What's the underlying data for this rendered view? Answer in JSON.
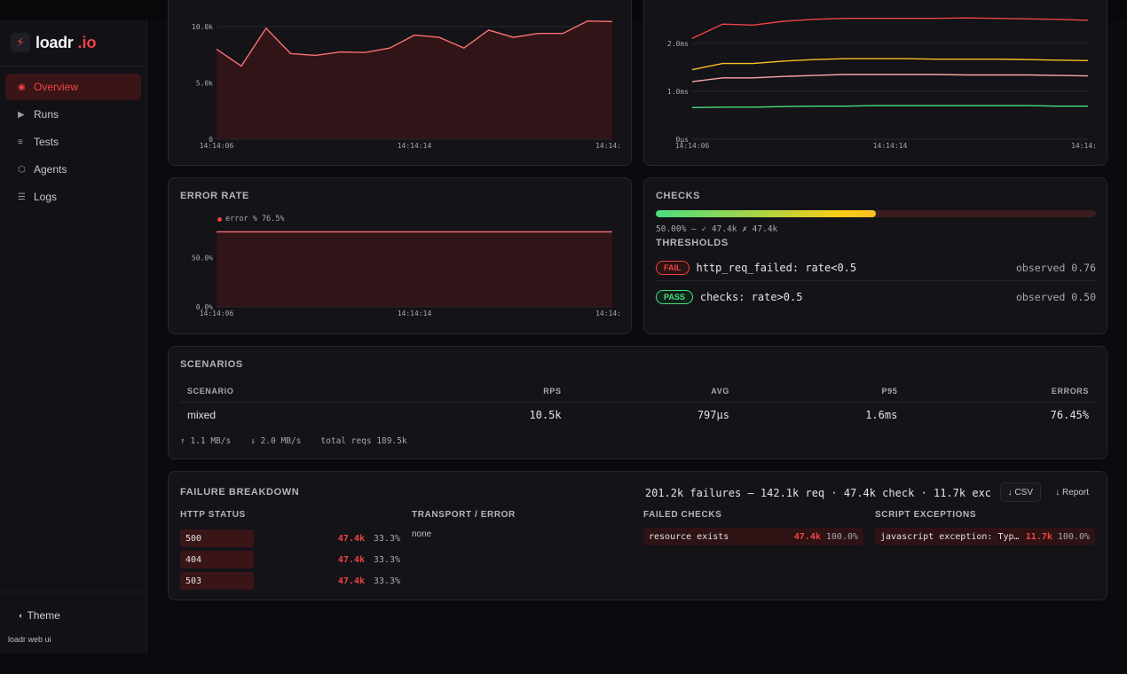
{
  "app": {
    "name": "loadr",
    "tld": ".io",
    "footer_note": "loadr web ui",
    "theme_label": "Theme"
  },
  "nav": [
    {
      "label": "Overview",
      "icon": "target-icon",
      "glyph": "◉",
      "active": true
    },
    {
      "label": "Runs",
      "icon": "play-icon",
      "glyph": "▶",
      "active": false
    },
    {
      "label": "Tests",
      "icon": "list-icon",
      "glyph": "≡",
      "active": false
    },
    {
      "label": "Agents",
      "icon": "hexagon-icon",
      "glyph": "⬡",
      "active": false
    },
    {
      "label": "Logs",
      "icon": "lines-icon",
      "glyph": "☰",
      "active": false
    }
  ],
  "colors": {
    "accent": "#ef4444",
    "pass": "#4ade80",
    "warn": "#facc15",
    "p99": "#ef4444",
    "p95": "#fbbf24",
    "avg": "#fca5a5",
    "min": "#4ade80"
  },
  "chart_data": [
    {
      "type": "area",
      "x_ticks": [
        "14:14:06",
        "14:14:14",
        "14:14:"
      ],
      "y_ticks": [
        "0",
        "5.0k",
        "10.0k"
      ],
      "ylim": [
        0,
        11500
      ],
      "values": [
        8000,
        6500,
        9850,
        7600,
        7450,
        7750,
        7700,
        8100,
        9250,
        9050,
        8100,
        9700,
        9050,
        9400,
        9400,
        10500,
        10450
      ]
    },
    {
      "type": "line",
      "x_ticks": [
        "14:14:06",
        "14:14:14",
        "14:14:"
      ],
      "y_ticks": [
        "0µs",
        "1.0ms",
        "2.0ms"
      ],
      "ylim": [
        0,
        2.7
      ],
      "series": [
        {
          "color": "#ef4444",
          "values": [
            2.1,
            2.4,
            2.38,
            2.46,
            2.5,
            2.52,
            2.52,
            2.52,
            2.52,
            2.53,
            2.52,
            2.51,
            2.5,
            2.48
          ]
        },
        {
          "color": "#fbbf24",
          "values": [
            1.45,
            1.58,
            1.58,
            1.63,
            1.66,
            1.68,
            1.68,
            1.68,
            1.67,
            1.67,
            1.67,
            1.66,
            1.65,
            1.64
          ]
        },
        {
          "color": "#fca5a5",
          "values": [
            1.2,
            1.28,
            1.28,
            1.31,
            1.33,
            1.35,
            1.35,
            1.35,
            1.35,
            1.34,
            1.34,
            1.34,
            1.33,
            1.32
          ]
        },
        {
          "color": "#4ade80",
          "values": [
            0.66,
            0.67,
            0.67,
            0.68,
            0.69,
            0.69,
            0.7,
            0.7,
            0.7,
            0.7,
            0.7,
            0.7,
            0.69,
            0.69
          ]
        }
      ]
    },
    {
      "type": "area",
      "title": "ERROR RATE",
      "legend": "error % 76.5%",
      "x_ticks": [
        "14:14:06",
        "14:14:14",
        "14:14:"
      ],
      "y_ticks": [
        "0.0%",
        "50.0%"
      ],
      "ylim": [
        0,
        95
      ],
      "values": [
        76.5,
        76.5,
        76.5,
        76.5,
        76.5,
        76.5,
        76.5,
        76.5,
        76.5,
        76.5,
        76.5,
        76.5,
        76.5,
        76.5,
        76.5,
        76.5,
        76.5
      ]
    }
  ],
  "checks": {
    "title": "CHECKS",
    "pass_fraction": 0.5,
    "summary": "50.00% — ✓ 47.4k ✗ 47.4k",
    "thresholds_title": "THRESHOLDS",
    "thresholds": [
      {
        "status": "FAIL",
        "name": "http_req_failed: rate<0.5",
        "observed": "observed 0.76"
      },
      {
        "status": "PASS",
        "name": "checks: rate>0.5",
        "observed": "observed 0.50"
      }
    ]
  },
  "scenarios": {
    "title": "SCENARIOS",
    "columns": [
      "SCENARIO",
      "RPS",
      "AVG",
      "P95",
      "ERRORS"
    ],
    "rows": [
      [
        "mixed",
        "10.5k",
        "797µs",
        "1.6ms",
        "76.45%"
      ]
    ],
    "footer": {
      "up": "↑ 1.1 MB/s",
      "down": "↓ 2.0 MB/s",
      "total": "total reqs 189.5k"
    }
  },
  "failures": {
    "title": "FAILURE BREAKDOWN",
    "summary": "201.2k failures — 142.1k req · 47.4k check · 11.7k exc",
    "csv_label": "↓ CSV",
    "report_label": "↓ Report",
    "http_title": "HTTP STATUS",
    "http": [
      {
        "code": "500",
        "count": "47.4k",
        "pct": "33.3%"
      },
      {
        "code": "404",
        "count": "47.4k",
        "pct": "33.3%"
      },
      {
        "code": "503",
        "count": "47.4k",
        "pct": "33.3%"
      }
    ],
    "transport_title": "TRANSPORT / ERROR",
    "transport_none": "none",
    "checks_title": "FAILED CHECKS",
    "failed_checks": [
      {
        "label": "resource exists",
        "count": "47.4k",
        "pct": "100.0%"
      }
    ],
    "exceptions_title": "SCRIPT EXCEPTIONS",
    "exceptions": [
      {
        "label": "javascript exception: TypeError: Cannot read properties of undefined",
        "count": "11.7k",
        "pct": "100.0%"
      }
    ]
  }
}
